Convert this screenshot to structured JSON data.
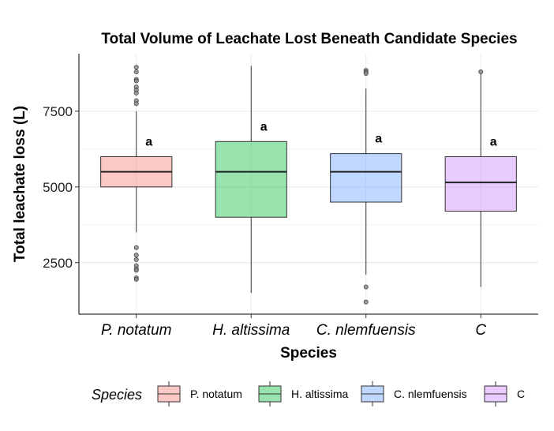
{
  "chart_data": {
    "type": "box",
    "title": "Total Volume of Leachate Lost Beneath Candidate Species",
    "xlabel": "Species",
    "ylabel": "Total leachate loss (L)",
    "ylim": [
      800,
      9400
    ],
    "yticks": [
      2500,
      5000,
      7500
    ],
    "grid": true,
    "legend": {
      "title": "Species",
      "position": "bottom"
    },
    "categories": [
      "P. notatum",
      "H. altissima",
      "C. nlemfuensis",
      "C"
    ],
    "series": [
      {
        "name": "P. notatum",
        "color": "#F8766D",
        "q1": 5000,
        "median": 5500,
        "q3": 6000,
        "whisker_low": 3500,
        "whisker_high": 7500,
        "outliers": [
          8950,
          8800,
          8550,
          8500,
          8300,
          8200,
          8100,
          7850,
          7750,
          3000,
          2750,
          2600,
          2400,
          2300,
          2250,
          2000,
          1950
        ],
        "sig": "a",
        "legend_label": "P. notatum"
      },
      {
        "name": "H. altissima",
        "color": "#00BA38",
        "q1": 4000,
        "median": 5500,
        "q3": 6500,
        "whisker_low": 1500,
        "whisker_high": 9000,
        "outliers": [],
        "sig": "a",
        "legend_label": "H. altissima"
      },
      {
        "name": "C. nlemfuensis",
        "color": "#619CFF",
        "q1": 4500,
        "median": 5500,
        "q3": 6100,
        "whisker_low": 2100,
        "whisker_high": 8250,
        "outliers": [
          8850,
          8800,
          8750,
          1700,
          1200
        ],
        "sig": "a",
        "legend_label": "C. nlemfuensis"
      },
      {
        "name": "C",
        "color": "#C77CFF",
        "q1": 4200,
        "median": 5150,
        "q3": 6000,
        "whisker_low": 1700,
        "whisker_high": 8800,
        "outliers": [
          8800
        ],
        "sig": "a",
        "legend_label": "C"
      }
    ]
  }
}
